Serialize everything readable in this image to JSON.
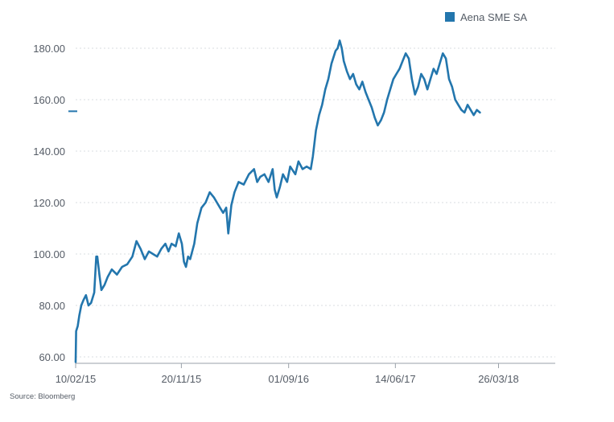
{
  "chart_data": {
    "type": "line",
    "title": "",
    "xlabel": "",
    "ylabel": "",
    "ylim": [
      58,
      184
    ],
    "yticks": [
      60,
      80,
      100,
      120,
      140,
      160,
      180
    ],
    "ytick_labels": [
      "60.00",
      "80.00",
      "100.00",
      "120.00",
      "140.00",
      "160.00",
      "180.00"
    ],
    "xtick_labels": [
      "10/02/15",
      "20/11/15",
      "01/09/16",
      "14/06/17",
      "26/03/18"
    ],
    "xtick_index": [
      0,
      205,
      413,
      620,
      820
    ],
    "xlim": [
      0,
      930
    ],
    "grid": "horizontal dotted",
    "legend": {
      "position": "top-right",
      "entries": [
        "Aena SME SA"
      ]
    },
    "last_value_marker": 155.5,
    "series": [
      {
        "name": "Aena SME SA",
        "color": "#2376ad",
        "points": [
          [
            0,
            58
          ],
          [
            1,
            70
          ],
          [
            4,
            72
          ],
          [
            7,
            76
          ],
          [
            11,
            80
          ],
          [
            15,
            82
          ],
          [
            20,
            84
          ],
          [
            25,
            80
          ],
          [
            30,
            81
          ],
          [
            36,
            85
          ],
          [
            40,
            99
          ],
          [
            42,
            99
          ],
          [
            46,
            92
          ],
          [
            50,
            86
          ],
          [
            56,
            88
          ],
          [
            62,
            91
          ],
          [
            70,
            94
          ],
          [
            80,
            92
          ],
          [
            90,
            95
          ],
          [
            100,
            96
          ],
          [
            110,
            99
          ],
          [
            118,
            105
          ],
          [
            126,
            102
          ],
          [
            134,
            98
          ],
          [
            142,
            101
          ],
          [
            150,
            100
          ],
          [
            158,
            99
          ],
          [
            166,
            102
          ],
          [
            174,
            104
          ],
          [
            180,
            101
          ],
          [
            186,
            104
          ],
          [
            194,
            103
          ],
          [
            200,
            108
          ],
          [
            206,
            104
          ],
          [
            210,
            97
          ],
          [
            214,
            95
          ],
          [
            218,
            99
          ],
          [
            222,
            98
          ],
          [
            230,
            104
          ],
          [
            236,
            112
          ],
          [
            244,
            118
          ],
          [
            252,
            120
          ],
          [
            260,
            124
          ],
          [
            268,
            122
          ],
          [
            274,
            120
          ],
          [
            280,
            118
          ],
          [
            286,
            116
          ],
          [
            292,
            118
          ],
          [
            296,
            108
          ],
          [
            302,
            119
          ],
          [
            308,
            124
          ],
          [
            316,
            128
          ],
          [
            326,
            127
          ],
          [
            336,
            131
          ],
          [
            346,
            133
          ],
          [
            352,
            128
          ],
          [
            358,
            130
          ],
          [
            366,
            131
          ],
          [
            374,
            128
          ],
          [
            382,
            133
          ],
          [
            386,
            125
          ],
          [
            390,
            122
          ],
          [
            396,
            126
          ],
          [
            402,
            131
          ],
          [
            410,
            128
          ],
          [
            416,
            134
          ],
          [
            426,
            131
          ],
          [
            432,
            136
          ],
          [
            440,
            133
          ],
          [
            448,
            134
          ],
          [
            456,
            133
          ],
          [
            460,
            138
          ],
          [
            466,
            148
          ],
          [
            472,
            154
          ],
          [
            478,
            158
          ],
          [
            484,
            164
          ],
          [
            490,
            168
          ],
          [
            496,
            174
          ],
          [
            504,
            179
          ],
          [
            508,
            180
          ],
          [
            512,
            183
          ],
          [
            516,
            180
          ],
          [
            520,
            175
          ],
          [
            526,
            171
          ],
          [
            532,
            168
          ],
          [
            538,
            170
          ],
          [
            544,
            166
          ],
          [
            550,
            164
          ],
          [
            556,
            167
          ],
          [
            562,
            163
          ],
          [
            568,
            160
          ],
          [
            574,
            157
          ],
          [
            580,
            153
          ],
          [
            586,
            150
          ],
          [
            592,
            152
          ],
          [
            598,
            155
          ],
          [
            604,
            160
          ],
          [
            610,
            164
          ],
          [
            616,
            168
          ],
          [
            622,
            170
          ],
          [
            628,
            172
          ],
          [
            634,
            175
          ],
          [
            640,
            178
          ],
          [
            646,
            176
          ],
          [
            652,
            168
          ],
          [
            658,
            162
          ],
          [
            664,
            165
          ],
          [
            670,
            170
          ],
          [
            676,
            168
          ],
          [
            682,
            164
          ],
          [
            688,
            168
          ],
          [
            694,
            172
          ],
          [
            700,
            170
          ],
          [
            706,
            174
          ],
          [
            712,
            178
          ],
          [
            718,
            176
          ],
          [
            724,
            168
          ],
          [
            730,
            165
          ],
          [
            736,
            160
          ],
          [
            742,
            158
          ],
          [
            748,
            156
          ],
          [
            754,
            155
          ],
          [
            760,
            158
          ],
          [
            766,
            156
          ],
          [
            772,
            154
          ],
          [
            778,
            156
          ],
          [
            784,
            155
          ]
        ]
      }
    ]
  },
  "source_text": "Source: Bloomberg"
}
